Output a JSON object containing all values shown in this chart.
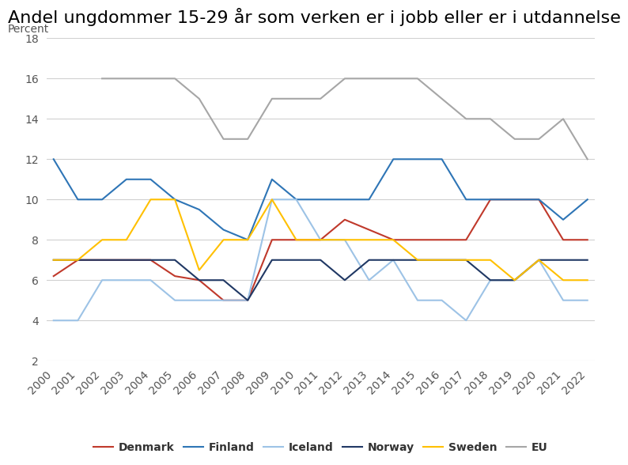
{
  "title": "Andel ungdommer 15-29 år som verken er i jobb eller er i utdannelse",
  "ylabel": "Percent",
  "years": [
    2000,
    2001,
    2002,
    2003,
    2004,
    2005,
    2006,
    2007,
    2008,
    2009,
    2010,
    2011,
    2012,
    2013,
    2014,
    2015,
    2016,
    2017,
    2018,
    2019,
    2020,
    2021,
    2022
  ],
  "series": {
    "Denmark": {
      "values": [
        6.2,
        7.0,
        7.0,
        7.0,
        7.0,
        6.2,
        6.0,
        5.0,
        5.0,
        8.0,
        8.0,
        8.0,
        9.0,
        8.5,
        8.0,
        8.0,
        8.0,
        8.0,
        10.0,
        10.0,
        10.0,
        8.0,
        8.0
      ],
      "color": "#c0392b",
      "linewidth": 1.5
    },
    "Finland": {
      "values": [
        12.0,
        10.0,
        10.0,
        11.0,
        11.0,
        10.0,
        9.5,
        8.5,
        8.0,
        11.0,
        10.0,
        10.0,
        10.0,
        10.0,
        12.0,
        12.0,
        12.0,
        10.0,
        10.0,
        10.0,
        10.0,
        9.0,
        10.0
      ],
      "color": "#2e75b6",
      "linewidth": 1.5
    },
    "Iceland": {
      "values": [
        4.0,
        4.0,
        6.0,
        6.0,
        6.0,
        5.0,
        5.0,
        5.0,
        5.0,
        10.0,
        10.0,
        8.0,
        8.0,
        6.0,
        7.0,
        5.0,
        5.0,
        4.0,
        6.0,
        6.0,
        7.0,
        5.0,
        5.0
      ],
      "color": "#9dc3e6",
      "linewidth": 1.5
    },
    "Norway": {
      "values": [
        7.0,
        7.0,
        7.0,
        7.0,
        7.0,
        7.0,
        6.0,
        6.0,
        5.0,
        7.0,
        7.0,
        7.0,
        6.0,
        7.0,
        7.0,
        7.0,
        7.0,
        7.0,
        6.0,
        6.0,
        7.0,
        7.0,
        7.0
      ],
      "color": "#203864",
      "linewidth": 1.5
    },
    "Sweden": {
      "values": [
        7.0,
        7.0,
        8.0,
        8.0,
        10.0,
        10.0,
        6.5,
        8.0,
        8.0,
        10.0,
        8.0,
        8.0,
        8.0,
        8.0,
        8.0,
        7.0,
        7.0,
        7.0,
        7.0,
        6.0,
        7.0,
        6.0,
        6.0
      ],
      "color": "#ffc000",
      "linewidth": 1.5
    },
    "EU": {
      "values": [
        null,
        null,
        16.0,
        16.0,
        16.0,
        16.0,
        15.0,
        13.0,
        13.0,
        15.0,
        15.0,
        15.0,
        16.0,
        16.0,
        16.0,
        16.0,
        15.0,
        14.0,
        14.0,
        13.0,
        13.0,
        14.0,
        12.0
      ],
      "color": "#a6a6a6",
      "linewidth": 1.5
    }
  },
  "ylim": [
    2,
    18
  ],
  "yticks": [
    2,
    4,
    6,
    8,
    10,
    12,
    14,
    16,
    18
  ],
  "legend_order": [
    "Denmark",
    "Finland",
    "Iceland",
    "Norway",
    "Sweden",
    "EU"
  ],
  "background_color": "#ffffff",
  "title_fontsize": 16,
  "tick_fontsize": 10,
  "legend_fontsize": 10,
  "percent_label_fontsize": 10
}
